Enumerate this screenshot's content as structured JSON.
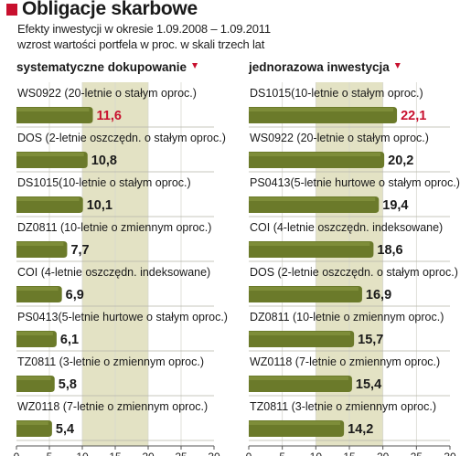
{
  "header": {
    "title": "Obligacje skarbowe",
    "subtitle_line1": "Efekty inwestycji w okresie 1.09.2008 – 1.09.2011",
    "subtitle_line2": "wzrost wartości portfela w proc. w skali trzech lat"
  },
  "colors": {
    "bar": "#6b7a2a",
    "highlight_text": "#c8102e",
    "shade_band": "#e3e2c4",
    "accent": "#c8102e"
  },
  "chart_data": [
    {
      "type": "bar",
      "orientation": "horizontal",
      "title": "systematyczne dokupowanie",
      "categories": [
        "WS0922 (20-letnie o stałym oproc.)",
        "DOS (2-letnie oszczędn. o stałym oproc.)",
        "DS1015(10-letnie o stałym oproc.)",
        "DZ0811 (10-letnie o zmiennym oproc.)",
        "COI (4-letnie oszczędn. indeksowane)",
        "PS0413(5-letnie hurtowe o stałym oproc.)",
        "TZ0811 (3-letnie o zmiennym oproc.)",
        "WZ0118 (7-letnie o zmiennym oproc.)"
      ],
      "values": [
        11.6,
        10.8,
        10.1,
        7.7,
        6.9,
        6.1,
        5.8,
        5.4
      ],
      "value_labels": [
        "11,6",
        "10,8",
        "10,1",
        "7,7",
        "6,9",
        "6,1",
        "5,8",
        "5,4"
      ],
      "highlight_index": 0,
      "xlim": [
        0,
        30
      ],
      "xticks": [
        "0",
        "5",
        "10",
        "15",
        "20",
        "25",
        "30"
      ],
      "shaded_band": [
        10,
        20
      ]
    },
    {
      "type": "bar",
      "orientation": "horizontal",
      "title": "jednorazowa inwestycja",
      "categories": [
        "DS1015(10-letnie o stałym oproc.)",
        "WS0922 (20-letnie o stałym oproc.)",
        "PS0413(5-letnie hurtowe o stałym oproc.)",
        "COI (4-letnie oszczędn. indeksowane)",
        "DOS (2-letnie oszczędn. o stałym oproc.)",
        "DZ0811 (10-letnie o zmiennym oproc.)",
        "WZ0118 (7-letnie o zmiennym oproc.)",
        "TZ0811 (3-letnie o zmiennym oproc.)"
      ],
      "values": [
        22.1,
        20.2,
        19.4,
        18.6,
        16.9,
        15.7,
        15.4,
        14.2
      ],
      "value_labels": [
        "22,1",
        "20,2",
        "19,4",
        "18,6",
        "16,9",
        "15,7",
        "15,4",
        "14,2"
      ],
      "highlight_index": 0,
      "xlim": [
        0,
        30
      ],
      "xticks": [
        "0",
        "5",
        "10",
        "15",
        "20",
        "25",
        "30"
      ],
      "shaded_band": [
        10,
        20
      ]
    }
  ]
}
